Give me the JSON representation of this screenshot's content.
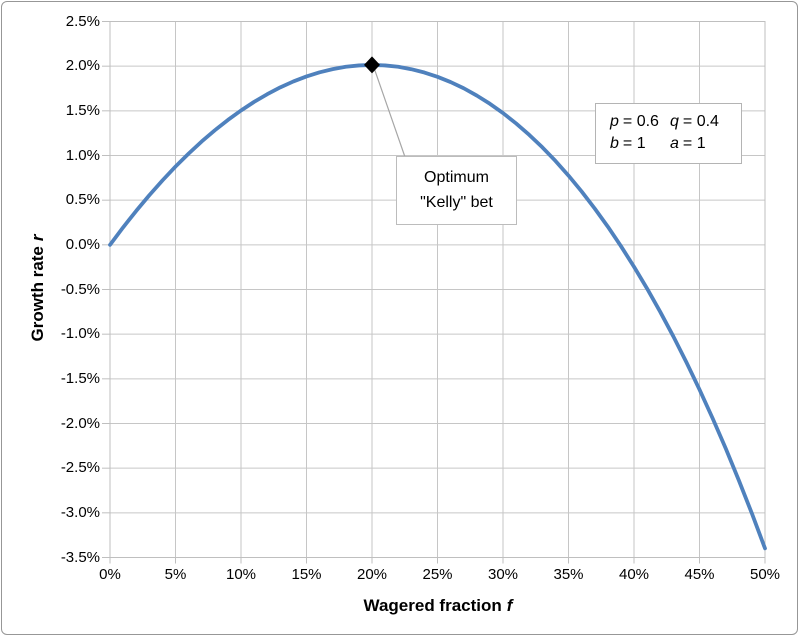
{
  "colors": {
    "curve": "#4F81BD",
    "gridline": "#C6C6C6",
    "axis_line": "#BFBFBF",
    "tick": "#BFBFBF",
    "marker": "#000000",
    "leader_line": "#A6A6A6",
    "text": "#000000",
    "outer_border": "#979797"
  },
  "chart_data": {
    "type": "line",
    "title": "",
    "grid": true,
    "legend": "none",
    "x_axis": {
      "label": "Wagered fraction",
      "label_symbol": "f",
      "min": 0,
      "max": 50,
      "tick_values": [
        0,
        5,
        10,
        15,
        20,
        25,
        30,
        35,
        40,
        45,
        50
      ],
      "tick_labels": [
        "0%",
        "5%",
        "10%",
        "15%",
        "20%",
        "25%",
        "30%",
        "35%",
        "40%",
        "45%",
        "50%"
      ]
    },
    "y_axis": {
      "label": "Growth rate",
      "label_symbol": "r",
      "min": -3.5,
      "max": 2.5,
      "tick_values": [
        2.5,
        2.0,
        1.5,
        1.0,
        0.5,
        0.0,
        -0.5,
        -1.0,
        -1.5,
        -2.0,
        -2.5,
        -3.0,
        -3.5
      ],
      "tick_labels": [
        "2.5%",
        "2.0%",
        "1.5%",
        "1.0%",
        "0.5%",
        "0.0%",
        "-0.5%",
        "-1.0%",
        "-1.5%",
        "-2.0%",
        "-2.5%",
        "-3.0%",
        "-3.5%"
      ]
    },
    "series": [
      {
        "name": "kelly-growth-rate-curve",
        "color": "#4F81BD",
        "x": [
          0,
          1,
          2,
          3,
          4,
          5,
          6,
          7,
          8,
          9,
          10,
          11,
          12,
          13,
          14,
          15,
          16,
          17,
          18,
          19,
          20,
          21,
          22,
          23,
          24,
          25,
          26,
          27,
          28,
          29,
          30,
          31,
          32,
          33,
          34,
          35,
          36,
          37,
          38,
          39,
          40,
          41,
          42,
          43,
          44,
          45,
          46,
          47,
          48,
          49,
          50
        ],
        "y": [
          0.0,
          0.195,
          0.38,
          0.555,
          0.72,
          0.876,
          1.021,
          1.157,
          1.282,
          1.398,
          1.504,
          1.6,
          1.686,
          1.763,
          1.829,
          1.885,
          1.931,
          1.967,
          1.993,
          2.008,
          2.014,
          2.008,
          1.993,
          1.966,
          1.929,
          1.881,
          1.822,
          1.753,
          1.671,
          1.579,
          1.475,
          1.359,
          1.231,
          1.092,
          0.94,
          0.775,
          0.598,
          0.407,
          0.204,
          -0.014,
          -0.245,
          -0.49,
          -0.75,
          -1.024,
          -1.314,
          -1.62,
          -1.941,
          -2.279,
          -2.635,
          -3.007,
          -3.398
        ]
      }
    ],
    "marker_point": {
      "x": 20,
      "y": 2.014,
      "shape": "diamond",
      "color": "#000000"
    },
    "annotation": {
      "line1": "Optimum",
      "line2": "\"Kelly\" bet"
    },
    "params": [
      {
        "symbol": "p",
        "value": "= 0.6"
      },
      {
        "symbol": "q",
        "value": "= 0.4"
      },
      {
        "symbol": "b",
        "value": "= 1"
      },
      {
        "symbol": "a",
        "value": "= 1"
      }
    ]
  }
}
